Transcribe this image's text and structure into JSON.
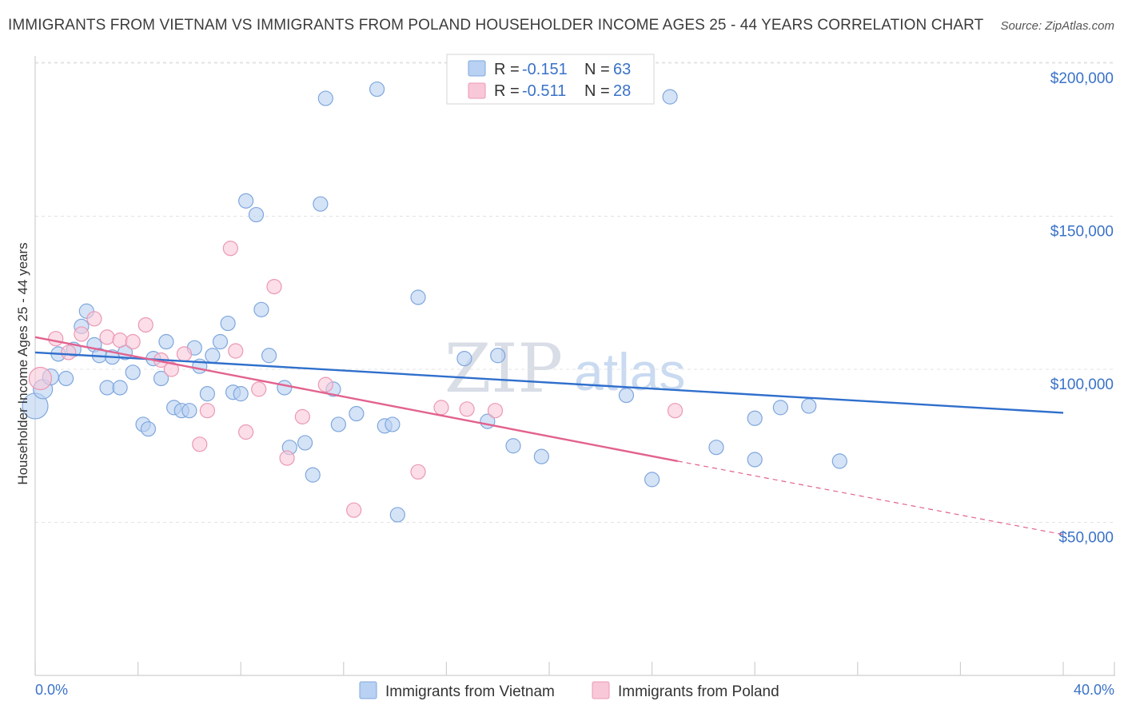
{
  "header": {
    "title": "IMMIGRANTS FROM VIETNAM VS IMMIGRANTS FROM POLAND HOUSEHOLDER INCOME AGES 25 - 44 YEARS CORRELATION CHART",
    "source": "Source: ZipAtlas.com"
  },
  "watermark": {
    "zip": "ZIP",
    "atlas": "atlas"
  },
  "legend": {
    "rows": [
      {
        "r_label": "R = ",
        "r_value": "-0.151",
        "n_label": "N = ",
        "n_value": "63"
      },
      {
        "r_label": "R = ",
        "r_value": "-0.511",
        "n_label": "N = ",
        "n_value": "28"
      }
    ]
  },
  "bottom_legend": {
    "vietnam": "Immigrants from Vietnam",
    "poland": "Immigrants from Poland"
  },
  "colors": {
    "vietnam_fill": "#b9d1f2",
    "vietnam_stroke": "#7fa7dd",
    "vietnam_line": "#2f6fcc",
    "poland_fill": "#f8c8d8",
    "poland_stroke": "#ec98b4",
    "poland_line": "#e2628e",
    "tick_text": "#3a72c8",
    "grid": "#e3e3e3"
  },
  "chart_data": {
    "type": "scatter",
    "title": "IMMIGRANTS FROM VIETNAM VS IMMIGRANTS FROM POLAND HOUSEHOLDER INCOME AGES 25 - 44 YEARS CORRELATION CHART",
    "xlabel": "",
    "ylabel": "Householder Income Ages 25 - 44 years",
    "xlim": [
      0,
      40
    ],
    "ylim": [
      0,
      210000
    ],
    "x_tick_labels": [
      "0.0%",
      "40.0%"
    ],
    "y_ticks": [
      {
        "value": 50000,
        "label": "$50,000"
      },
      {
        "value": 100000,
        "label": "$100,000"
      },
      {
        "value": 150000,
        "label": "$150,000"
      },
      {
        "value": 200000,
        "label": "$200,000"
      }
    ],
    "grid": true,
    "legend_position": "top-center",
    "series": [
      {
        "name": "Immigrants from Vietnam",
        "r": -0.151,
        "n": 63,
        "trend": {
          "x": [
            0,
            40
          ],
          "y": [
            105500,
            85800
          ]
        },
        "points": [
          [
            0.0,
            88000,
            16
          ],
          [
            0.3,
            93500,
            12
          ],
          [
            0.6,
            97500,
            10
          ],
          [
            1.2,
            97000,
            9
          ],
          [
            0.9,
            105000,
            9
          ],
          [
            1.5,
            106500,
            9
          ],
          [
            1.8,
            114000,
            9
          ],
          [
            2.0,
            119000,
            9
          ],
          [
            2.3,
            108000,
            9
          ],
          [
            2.5,
            104500,
            9
          ],
          [
            2.8,
            94000,
            9
          ],
          [
            3.0,
            104000,
            9
          ],
          [
            3.3,
            94000,
            9
          ],
          [
            3.5,
            105500,
            9
          ],
          [
            3.8,
            99000,
            9
          ],
          [
            4.2,
            82000,
            9
          ],
          [
            4.4,
            80500,
            9
          ],
          [
            4.6,
            103500,
            9
          ],
          [
            4.9,
            97000,
            9
          ],
          [
            5.1,
            109000,
            9
          ],
          [
            5.4,
            87500,
            9
          ],
          [
            5.7,
            86500,
            9
          ],
          [
            6.0,
            86500,
            9
          ],
          [
            6.2,
            107000,
            9
          ],
          [
            6.4,
            101000,
            9
          ],
          [
            6.7,
            92000,
            9
          ],
          [
            6.9,
            104500,
            9
          ],
          [
            7.2,
            109000,
            9
          ],
          [
            7.5,
            115000,
            9
          ],
          [
            7.7,
            92500,
            9
          ],
          [
            8.0,
            92000,
            9
          ],
          [
            8.2,
            155000,
            9
          ],
          [
            8.6,
            150500,
            9
          ],
          [
            8.8,
            119500,
            9
          ],
          [
            9.1,
            104500,
            9
          ],
          [
            9.7,
            94000,
            9
          ],
          [
            9.9,
            74500,
            9
          ],
          [
            10.5,
            76000,
            9
          ],
          [
            10.8,
            65500,
            9
          ],
          [
            11.1,
            154000,
            9
          ],
          [
            11.3,
            188500,
            9
          ],
          [
            11.6,
            93500,
            9
          ],
          [
            11.8,
            82000,
            9
          ],
          [
            12.5,
            85500,
            9
          ],
          [
            13.3,
            191500,
            9
          ],
          [
            13.6,
            81500,
            9
          ],
          [
            13.9,
            82000,
            9
          ],
          [
            14.1,
            52500,
            9
          ],
          [
            14.9,
            123500,
            9
          ],
          [
            16.7,
            103500,
            9
          ],
          [
            17.6,
            83000,
            9
          ],
          [
            18.0,
            104500,
            9
          ],
          [
            18.6,
            75000,
            9
          ],
          [
            19.7,
            71500,
            9
          ],
          [
            23.0,
            91500,
            9
          ],
          [
            24.0,
            64000,
            9
          ],
          [
            24.7,
            189000,
            9
          ],
          [
            26.5,
            74500,
            9
          ],
          [
            28.0,
            70500,
            9
          ],
          [
            28.0,
            84000,
            9
          ],
          [
            29.0,
            87500,
            9
          ],
          [
            30.1,
            88000,
            9
          ],
          [
            31.3,
            70000,
            9
          ]
        ]
      },
      {
        "name": "Immigrants from Poland",
        "r": -0.511,
        "n": 28,
        "trend": {
          "x": [
            0,
            25
          ],
          "y": [
            110500,
            70000
          ],
          "dashed_to": {
            "x": 40,
            "y": 46000
          }
        },
        "points": [
          [
            0.2,
            97000,
            14
          ],
          [
            0.8,
            110000,
            9
          ],
          [
            1.3,
            105500,
            9
          ],
          [
            1.8,
            111500,
            9
          ],
          [
            2.3,
            116500,
            9
          ],
          [
            2.8,
            110500,
            9
          ],
          [
            3.3,
            109500,
            9
          ],
          [
            3.8,
            109000,
            9
          ],
          [
            4.3,
            114500,
            9
          ],
          [
            4.9,
            103000,
            9
          ],
          [
            5.3,
            100000,
            9
          ],
          [
            5.8,
            105000,
            9
          ],
          [
            6.4,
            75500,
            9
          ],
          [
            6.7,
            86500,
            9
          ],
          [
            7.6,
            139500,
            9
          ],
          [
            7.8,
            106000,
            9
          ],
          [
            8.2,
            79500,
            9
          ],
          [
            8.7,
            93500,
            9
          ],
          [
            9.3,
            127000,
            9
          ],
          [
            9.8,
            71000,
            9
          ],
          [
            10.4,
            84500,
            9
          ],
          [
            11.3,
            95000,
            9
          ],
          [
            12.4,
            54000,
            9
          ],
          [
            14.9,
            66500,
            9
          ],
          [
            15.8,
            87500,
            9
          ],
          [
            16.8,
            87000,
            9
          ],
          [
            17.9,
            86500,
            9
          ],
          [
            24.9,
            86500,
            9
          ]
        ]
      }
    ]
  }
}
